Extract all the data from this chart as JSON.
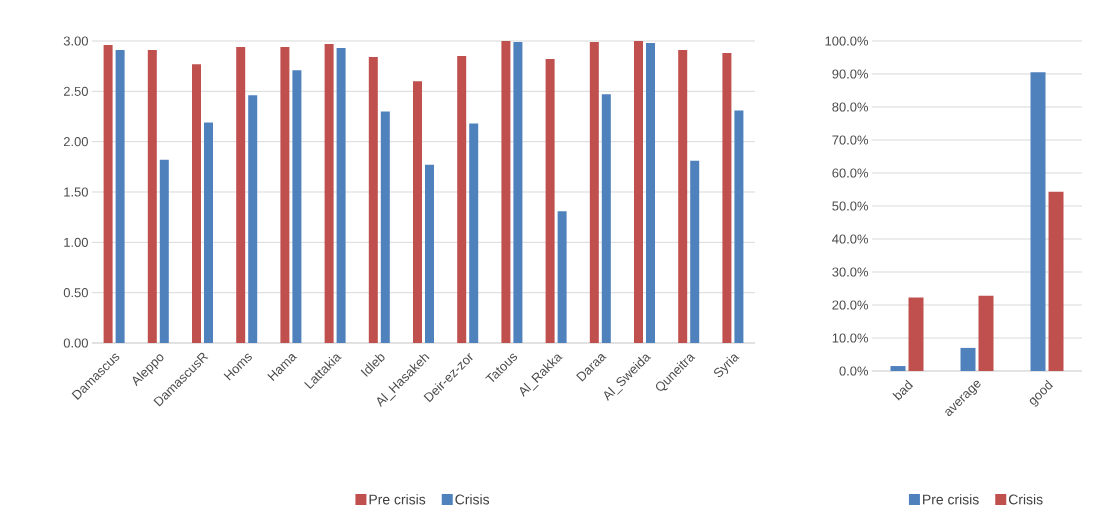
{
  "chart_data": [
    {
      "type": "bar",
      "categories": [
        "Damascus",
        "Aleppo",
        "DamascusR",
        "Homs",
        "Hama",
        "Lattakia",
        "Idleb",
        "Al_Hasakeh",
        "Deir-ez-zor",
        "Tatous",
        "Al_Rakka",
        "Daraa",
        "Al_Sweida",
        "Quneitra",
        "Syria"
      ],
      "series": [
        {
          "name": "Pre crisis",
          "color": "#c0504d",
          "values": [
            2.96,
            2.91,
            2.77,
            2.94,
            2.94,
            2.97,
            2.84,
            2.6,
            2.85,
            3.0,
            2.82,
            2.99,
            3.0,
            2.91,
            2.88
          ]
        },
        {
          "name": "Crisis",
          "color": "#4f81bd",
          "values": [
            2.91,
            1.82,
            2.19,
            2.46,
            2.71,
            2.93,
            2.3,
            1.77,
            2.18,
            2.99,
            1.31,
            2.47,
            2.98,
            1.81,
            2.31
          ]
        }
      ],
      "ylim": [
        0,
        3
      ],
      "yticks": [
        {
          "value": 0,
          "label": "0.00"
        },
        {
          "value": 0.5,
          "label": "0.50"
        },
        {
          "value": 1,
          "label": "1.00"
        },
        {
          "value": 1.5,
          "label": "1.50"
        },
        {
          "value": 2,
          "label": "2.00"
        },
        {
          "value": 2.5,
          "label": "2.50"
        },
        {
          "value": 3,
          "label": "3.00"
        }
      ],
      "grid": "y",
      "legend": "bottom"
    },
    {
      "type": "bar",
      "categories": [
        "bad",
        "average",
        "good"
      ],
      "series": [
        {
          "name": "Pre crisis",
          "color": "#4f81bd",
          "values": [
            1.5,
            7.0,
            90.5
          ]
        },
        {
          "name": "Crisis",
          "color": "#c0504d",
          "values": [
            22.3,
            22.8,
            54.3
          ]
        }
      ],
      "ylim": [
        0,
        100
      ],
      "yticks": [
        {
          "value": 0,
          "label": "0.0%"
        },
        {
          "value": 10,
          "label": "10.0%"
        },
        {
          "value": 20,
          "label": "20.0%"
        },
        {
          "value": 30,
          "label": "30.0%"
        },
        {
          "value": 40,
          "label": "40.0%"
        },
        {
          "value": 50,
          "label": "50.0%"
        },
        {
          "value": 60,
          "label": "60.0%"
        },
        {
          "value": 70,
          "label": "70.0%"
        },
        {
          "value": 80,
          "label": "80.0%"
        },
        {
          "value": 90,
          "label": "90.0%"
        },
        {
          "value": 100,
          "label": "100.0%"
        }
      ],
      "grid": "y",
      "legend": "bottom"
    }
  ]
}
